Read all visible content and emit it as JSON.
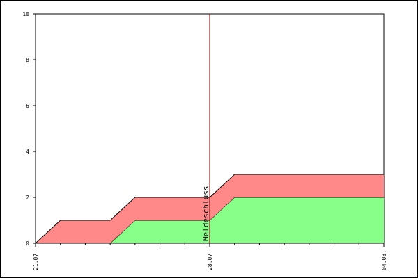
{
  "chart_data": {
    "type": "area",
    "title": "",
    "xlabel": "",
    "ylabel": "",
    "stacked": true,
    "x_unit": "days",
    "x": [
      0,
      1,
      3,
      4,
      6,
      7,
      8,
      14
    ],
    "x_ticks": [
      {
        "x": 0,
        "label": "21.07."
      },
      {
        "x": 7,
        "label": "28.07."
      },
      {
        "x": 14,
        "label": "04.08."
      }
    ],
    "xlim": [
      0,
      14
    ],
    "ylim": [
      0,
      10
    ],
    "y_ticks": [
      0,
      2,
      4,
      6,
      8,
      10
    ],
    "series": [
      {
        "color": "#88ff88",
        "values": [
          0,
          0,
          0,
          1,
          1,
          1,
          2,
          2
        ]
      },
      {
        "color": "#ff8888",
        "values": [
          0,
          1,
          1,
          1,
          1,
          1,
          1,
          1
        ]
      }
    ],
    "marker": {
      "x": 7,
      "label": "Meldeschluss",
      "color": "#800000"
    },
    "grid": false,
    "legend": "none"
  }
}
